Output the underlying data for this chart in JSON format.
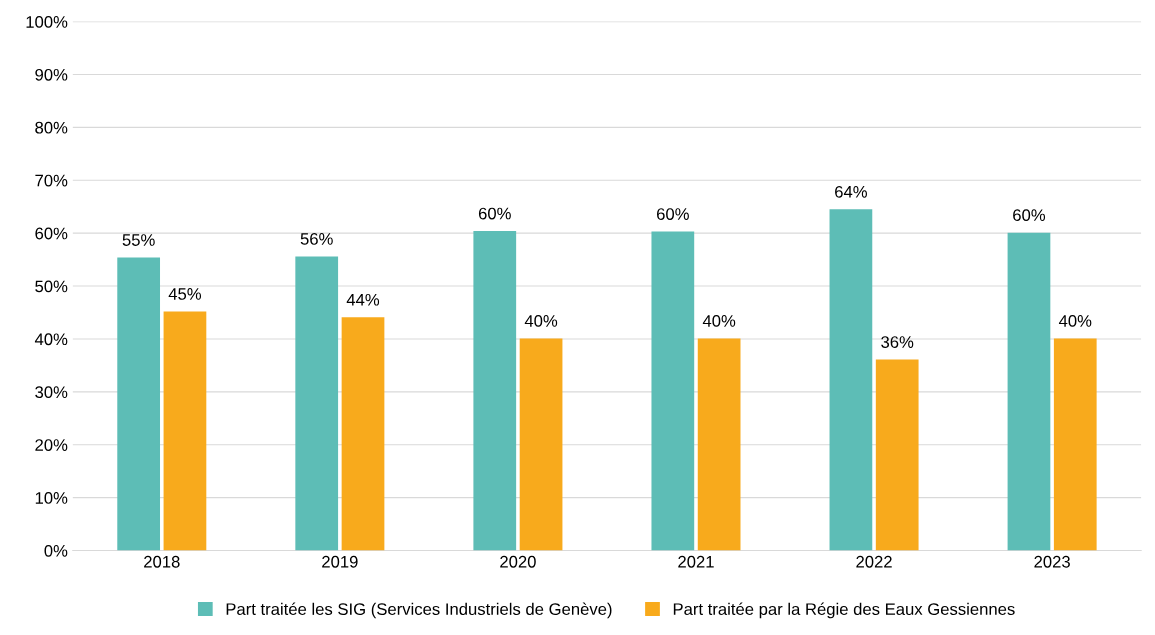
{
  "chart_data": {
    "type": "bar",
    "categories": [
      "2018",
      "2019",
      "2020",
      "2021",
      "2022",
      "2023"
    ],
    "series": [
      {
        "name": "Part traitée les SIG (Services Industriels de Genève)",
        "color": "#5dbdb6",
        "values": [
          55.4,
          55.6,
          60.4,
          60.3,
          64.5,
          60.1
        ],
        "value_labels": [
          "55%",
          "56%",
          "60%",
          "60%",
          "64%",
          "60%"
        ]
      },
      {
        "name": "Part traitée par la Régie des Eaux Gessiennes",
        "color": "#f8aa1c",
        "values": [
          45.2,
          44.1,
          40.1,
          40.1,
          36.1,
          40.1
        ],
        "value_labels": [
          "45%",
          "44%",
          "40%",
          "40%",
          "36%",
          "40%"
        ]
      }
    ],
    "ylim": [
      0,
      100
    ],
    "yticks": [
      {
        "value": 0,
        "label": "0%"
      },
      {
        "value": 10,
        "label": "10%"
      },
      {
        "value": 20,
        "label": "20%"
      },
      {
        "value": 30,
        "label": "30%"
      },
      {
        "value": 40,
        "label": "40%"
      },
      {
        "value": 50,
        "label": "50%"
      },
      {
        "value": 60,
        "label": "60%"
      },
      {
        "value": 70,
        "label": "70%"
      },
      {
        "value": 80,
        "label": "80%"
      },
      {
        "value": 90,
        "label": "90%"
      },
      {
        "value": 100,
        "label": "100%"
      }
    ],
    "grid": "y",
    "legend": "bottom"
  }
}
